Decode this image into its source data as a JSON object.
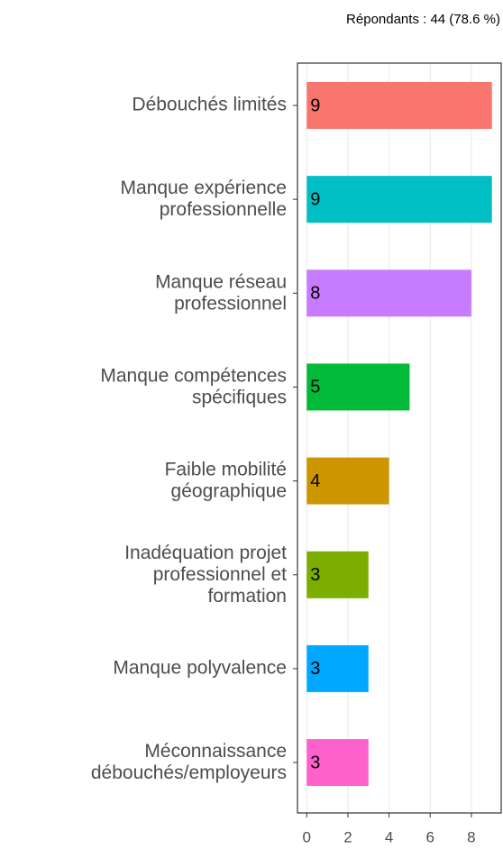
{
  "chart_data": {
    "type": "bar",
    "orientation": "horizontal",
    "subtitle": "Répondants : 44 (78.6 %)",
    "categories": [
      "Débouchés limités",
      "Manque expérience\nprofessionnelle",
      "Manque réseau\nprofessionnel",
      "Manque compétences\nspécifiques",
      "Faible mobilité\ngéographique",
      "Inadéquation projet\nprofessionnel et\nformation",
      "Manque polyvalence",
      "Méconnaissance\ndébouchés/employeurs"
    ],
    "values": [
      9,
      9,
      8,
      5,
      4,
      3,
      3,
      3
    ],
    "colors": [
      "#F8766D",
      "#00BFC4",
      "#C77CFF",
      "#00BA38",
      "#CD9600",
      "#7CAE00",
      "#00A9FF",
      "#FF61CC"
    ],
    "xlim": [
      -0.45,
      9.45
    ],
    "xticks": [
      0,
      2,
      4,
      6,
      8
    ],
    "grid": true
  }
}
